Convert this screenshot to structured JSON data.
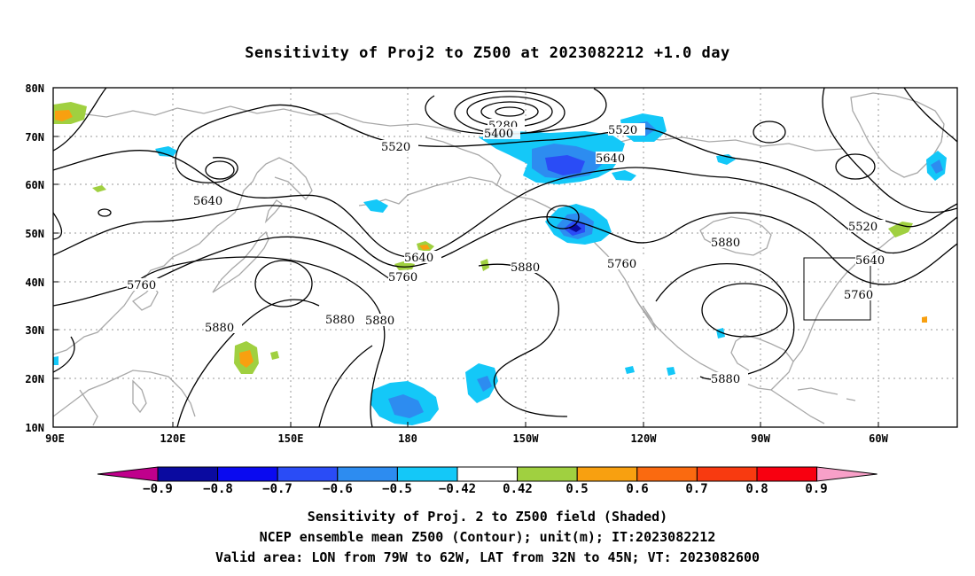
{
  "title": "Sensitivity of Proj2 to Z500 at 2023082212 +1.0 day",
  "map": {
    "lat_labels": [
      "80N",
      "70N",
      "60N",
      "50N",
      "40N",
      "30N",
      "20N",
      "10N"
    ],
    "lon_labels": [
      "90E",
      "120E",
      "150E",
      "180",
      "150W",
      "120W",
      "90W",
      "60W"
    ],
    "contour_labels": [
      "5280",
      "5400",
      "5520",
      "5520",
      "5640",
      "5520",
      "5640",
      "5640",
      "5760",
      "5880",
      "5760",
      "5640",
      "5760",
      "5880",
      "5760",
      "5880",
      "5880",
      "5880",
      "5880"
    ],
    "valid_area_box": {
      "lon": [
        "79W",
        "62W"
      ],
      "lat": [
        "32N",
        "45N"
      ]
    }
  },
  "colorbar": {
    "colors": [
      "#c0008c",
      "#0a0aa0",
      "#0a0af0",
      "#2a4cf6",
      "#2d8cf0",
      "#14c8f8",
      "#ffffff",
      "#a0d040",
      "#f8a010",
      "#fa6a10",
      "#f83a10",
      "#f80010",
      "#f8a0c8"
    ],
    "labels": [
      "−0.9",
      "−0.8",
      "−0.7",
      "−0.6",
      "−0.5",
      "−0.42",
      "0.42",
      "0.5",
      "0.6",
      "0.7",
      "0.8",
      "0.9"
    ]
  },
  "caption": {
    "line1": "Sensitivity of Proj. 2 to Z500 field (Shaded)",
    "line2": "NCEP ensemble mean Z500 (Contour); unit(m); IT:2023082212",
    "line3": "Valid area: LON from 79W to 62W, LAT from 32N to 45N; VT: 2023082600"
  }
}
